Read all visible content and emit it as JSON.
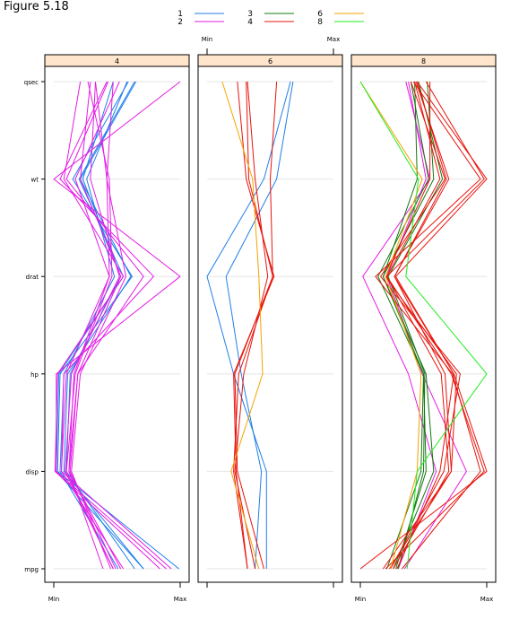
{
  "figure_title": "Figure 5.18",
  "chart_data": {
    "type": "parallel-coordinates",
    "variables": [
      "mpg",
      "disp",
      "hp",
      "drat",
      "wt",
      "qsec"
    ],
    "scale_labels": {
      "min": "Min",
      "max": "Max"
    },
    "legend": {
      "placement": "top",
      "entries": [
        {
          "name": "1",
          "color": "#1f7fe8"
        },
        {
          "name": "2",
          "color": "#e41ce4"
        },
        {
          "name": "3",
          "color": "#14780f"
        },
        {
          "name": "4",
          "color": "#e8140c"
        },
        {
          "name": "6",
          "color": "#f5a300"
        },
        {
          "name": "8",
          "color": "#1eed1e"
        }
      ]
    },
    "grid": true,
    "panels": [
      {
        "label": "4",
        "lines": [
          {
            "group": "1",
            "values": [
              0.71,
              0.02,
              0.04,
              0.55,
              0.2,
              0.64
            ]
          },
          {
            "group": "1",
            "values": [
              0.99,
              0.03,
              0.05,
              0.62,
              0.15,
              0.59
            ]
          },
          {
            "group": "1",
            "values": [
              0.71,
              0.08,
              0.11,
              0.61,
              0.21,
              0.65
            ]
          },
          {
            "group": "1",
            "values": [
              0.64,
              0.1,
              0.13,
              0.53,
              0.23,
              0.47
            ]
          },
          {
            "group": "1",
            "values": [
              0.51,
              0.05,
              0.08,
              0.48,
              0.26,
              0.58
            ]
          },
          {
            "group": "2",
            "values": [
              0.47,
              0.09,
              0.14,
              0.52,
              0.29,
              0.33
            ]
          },
          {
            "group": "2",
            "values": [
              0.53,
              0.12,
              0.19,
              0.71,
              0.1,
              0.43
            ]
          },
          {
            "group": "2",
            "values": [
              0.89,
              0.02,
              0.02,
              1.0,
              0.0,
              1.0
            ]
          },
          {
            "group": "2",
            "values": [
              0.55,
              0.06,
              0.1,
              0.44,
              0.17,
              0.52
            ]
          },
          {
            "group": "2",
            "values": [
              0.84,
              0.01,
              0.03,
              0.55,
              0.08,
              0.21
            ]
          },
          {
            "group": "2",
            "values": [
              0.45,
              0.14,
              0.21,
              0.57,
              0.42,
              0.47
            ]
          },
          {
            "group": "2",
            "values": [
              0.47,
              0.1,
              0.17,
              0.46,
              0.44,
              0.27
            ]
          },
          {
            "group": "2",
            "values": [
              0.93,
              0.06,
              0.08,
              0.79,
              0.05,
              0.42
            ]
          },
          {
            "group": "2",
            "values": [
              0.49,
              0.13,
              0.19,
              0.53,
              0.21,
              0.29
            ]
          },
          {
            "group": "2",
            "values": [
              0.39,
              0.12,
              0.16,
              0.44,
              0.42,
              0.33
            ]
          }
        ]
      },
      {
        "label": "6",
        "lines": [
          {
            "group": "1",
            "values": [
              0.47,
              0.47,
              0.21,
              0.0,
              0.45,
              0.66
            ]
          },
          {
            "group": "1",
            "values": [
              0.38,
              0.43,
              0.27,
              0.15,
              0.55,
              0.68
            ]
          },
          {
            "group": "4",
            "values": [
              0.32,
              0.21,
              0.25,
              0.52,
              0.33,
              0.31
            ]
          },
          {
            "group": "4",
            "values": [
              0.38,
              0.22,
              0.29,
              0.48,
              0.38,
              0.32
            ]
          },
          {
            "group": "4",
            "values": [
              0.32,
              0.23,
              0.21,
              0.53,
              0.31,
              0.24
            ]
          },
          {
            "group": "4",
            "values": [
              0.45,
              0.24,
              0.22,
              0.52,
              0.5,
              0.55
            ]
          },
          {
            "group": "6",
            "values": [
              0.41,
              0.19,
              0.44,
              0.41,
              0.36,
              0.12
            ]
          }
        ]
      },
      {
        "label": "8",
        "lines": [
          {
            "group": "2",
            "values": [
              0.35,
              0.84,
              0.49,
              0.21,
              0.52,
              0.38
            ]
          },
          {
            "group": "2",
            "values": [
              0.3,
              0.6,
              0.38,
              0.02,
              0.55,
              0.36
            ]
          },
          {
            "group": "3",
            "values": [
              0.3,
              0.5,
              0.51,
              0.22,
              0.65,
              0.46
            ]
          },
          {
            "group": "3",
            "values": [
              0.26,
              0.58,
              0.52,
              0.18,
              0.58,
              0.53
            ]
          },
          {
            "group": "3",
            "values": [
              0.21,
              0.48,
              0.5,
              0.14,
              0.54,
              0.4
            ]
          },
          {
            "group": "3",
            "values": [
              0.28,
              0.52,
              0.5,
              0.18,
              0.45,
              0.43
            ]
          },
          {
            "group": "4",
            "values": [
              0.0,
              1.0,
              0.74,
              0.28,
              1.0,
              0.45
            ]
          },
          {
            "group": "4",
            "values": [
              0.2,
              0.98,
              0.72,
              0.21,
              0.98,
              0.52
            ]
          },
          {
            "group": "4",
            "values": [
              0.18,
              0.72,
              0.67,
              0.27,
              0.7,
              0.44
            ]
          },
          {
            "group": "4",
            "values": [
              0.24,
              0.66,
              0.79,
              0.16,
              0.67,
              0.4
            ]
          },
          {
            "group": "4",
            "values": [
              0.26,
              0.7,
              0.64,
              0.21,
              0.63,
              0.43
            ]
          },
          {
            "group": "4",
            "values": [
              0.29,
              0.63,
              0.74,
              0.27,
              0.68,
              0.45
            ]
          },
          {
            "group": "4",
            "values": [
              0.23,
              0.72,
              0.76,
              0.2,
              0.55,
              0.55
            ]
          },
          {
            "group": "4",
            "values": [
              0.33,
              0.95,
              0.73,
              0.12,
              0.95,
              0.42
            ]
          },
          {
            "group": "6",
            "values": [
              0.24,
              0.45,
              0.48,
              0.2,
              0.49,
              0.0
            ]
          },
          {
            "group": "8",
            "values": [
              0.37,
              0.45,
              1.0,
              0.36,
              0.46,
              0.0
            ]
          }
        ]
      }
    ]
  }
}
